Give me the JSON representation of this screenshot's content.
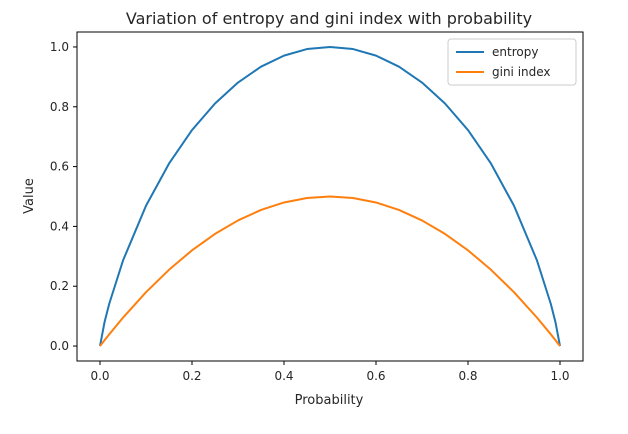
{
  "chart_data": {
    "type": "line",
    "title": "Variation of entropy and gini index with probability",
    "xlabel": "Probability",
    "ylabel": "Value",
    "xlim": [
      -0.05,
      1.05
    ],
    "ylim": [
      -0.05,
      1.05
    ],
    "x_ticks": [
      "0.0",
      "0.2",
      "0.4",
      "0.6",
      "0.8",
      "1.0"
    ],
    "y_ticks": [
      "0.0",
      "0.2",
      "0.4",
      "0.6",
      "0.8",
      "1.0"
    ],
    "grid": false,
    "legend_position": "top-right",
    "x": [
      0.01,
      0.02,
      0.05,
      0.1,
      0.15,
      0.2,
      0.25,
      0.3,
      0.35,
      0.4,
      0.45,
      0.5,
      0.55,
      0.6,
      0.65,
      0.7,
      0.75,
      0.8,
      0.85,
      0.9,
      0.95,
      0.98,
      0.99
    ],
    "series": [
      {
        "name": "entropy",
        "color": "#1f77b4",
        "values": [
          0.081,
          0.141,
          0.286,
          0.469,
          0.61,
          0.722,
          0.811,
          0.881,
          0.934,
          0.971,
          0.993,
          1.0,
          0.993,
          0.971,
          0.934,
          0.881,
          0.811,
          0.722,
          0.61,
          0.469,
          0.286,
          0.141,
          0.081
        ]
      },
      {
        "name": "gini index",
        "color": "#ff7f0e",
        "values": [
          0.0198,
          0.0392,
          0.095,
          0.18,
          0.255,
          0.32,
          0.375,
          0.42,
          0.455,
          0.48,
          0.495,
          0.5,
          0.495,
          0.48,
          0.455,
          0.42,
          0.375,
          0.32,
          0.255,
          0.18,
          0.095,
          0.0392,
          0.0198
        ]
      }
    ]
  }
}
